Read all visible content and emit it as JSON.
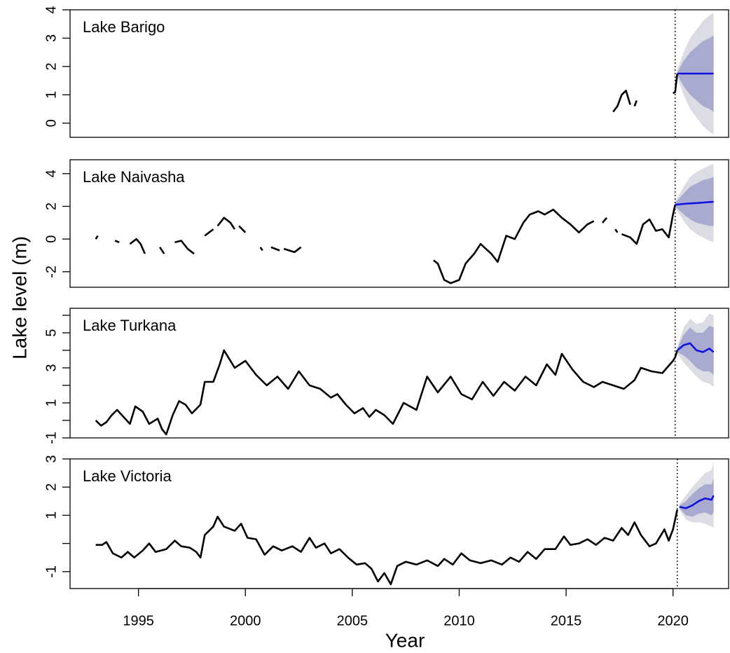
{
  "ylabel": "Lake level (m)",
  "chart_data": [
    {
      "type": "line",
      "title": "Lake Barigo",
      "color": "#000000",
      "xlim": [
        1991.8,
        2022.6
      ],
      "ylim": [
        -0.5,
        4
      ],
      "yticks": [
        0,
        1,
        2,
        3,
        4
      ],
      "vline": 2020.1,
      "x": [
        2017.2,
        2017.4,
        2017.6,
        2017.8,
        2017.9,
        2018.0,
        2018.1,
        2018.2,
        2018.3,
        2019.9,
        2020.0,
        2020.1,
        2020.2
      ],
      "values": [
        0.4,
        0.6,
        1.0,
        1.15,
        0.9,
        0.65,
        null,
        0.6,
        0.8,
        null,
        1.05,
        1.1,
        1.75
      ],
      "forecast": {
        "color": "#1010e0",
        "band80_color": "#a8abcf",
        "band95_color": "#dcdce4",
        "x": [
          2020.2,
          2020.5,
          2020.8,
          2021.1,
          2021.4,
          2021.7,
          2021.9
        ],
        "mean": [
          1.75,
          1.75,
          1.75,
          1.75,
          1.75,
          1.75,
          1.75
        ],
        "lo80": [
          1.7,
          1.3,
          1.0,
          0.8,
          0.6,
          0.5,
          0.4
        ],
        "hi80": [
          1.8,
          2.2,
          2.5,
          2.7,
          2.9,
          3.0,
          3.1
        ],
        "lo95": [
          1.6,
          1.0,
          0.5,
          0.2,
          -0.1,
          -0.3,
          -0.4
        ],
        "hi95": [
          1.9,
          2.5,
          3.0,
          3.3,
          3.6,
          3.8,
          3.9
        ]
      }
    },
    {
      "type": "line",
      "title": "Lake Naivasha",
      "color": "#000000",
      "xlim": [
        1991.8,
        2022.6
      ],
      "ylim": [
        -2.95,
        4.85
      ],
      "yticks": [
        -2,
        0,
        2,
        4
      ],
      "vline": 2020.1,
      "x": [
        1993.0,
        1993.1,
        1993.5,
        1993.9,
        1994.1,
        1994.3,
        1994.6,
        1994.9,
        1995.1,
        1995.3,
        1995.6,
        1996.0,
        1996.2,
        1996.4,
        1996.7,
        1997.0,
        1997.3,
        1997.6,
        1997.8,
        1998.1,
        1998.3,
        1998.5,
        1998.6,
        1998.7,
        1999.0,
        1999.3,
        1999.5,
        1999.6,
        1999.7,
        2000.0,
        2000.4,
        2000.7,
        2000.8,
        2001.0,
        2001.2,
        2001.6,
        2001.7,
        2001.8,
        2002.3,
        2002.6,
        2005.0,
        2008.8,
        2009.0,
        2009.3,
        2009.6,
        2010.0,
        2010.3,
        2010.7,
        2011.0,
        2011.5,
        2011.8,
        2012.2,
        2012.6,
        2013.0,
        2013.3,
        2013.7,
        2014.0,
        2014.4,
        2014.8,
        2015.2,
        2015.6,
        2016.0,
        2016.3,
        2016.5,
        2016.7,
        2016.9,
        2017.1,
        2017.3,
        2017.4,
        2017.5,
        2017.6,
        2018.0,
        2018.3,
        2018.6,
        2018.9,
        2019.2,
        2019.5,
        2019.8,
        2020.0,
        2020.1
      ],
      "values": [
        0.0,
        0.2,
        null,
        -0.1,
        -0.2,
        null,
        -0.3,
        0.0,
        -0.3,
        -0.9,
        null,
        -0.5,
        -0.9,
        null,
        -0.2,
        -0.1,
        -0.6,
        -0.9,
        null,
        0.2,
        0.4,
        0.6,
        null,
        0.8,
        1.3,
        1.0,
        0.6,
        null,
        0.8,
        0.4,
        null,
        -0.5,
        -0.7,
        null,
        -0.5,
        -0.7,
        null,
        -0.6,
        -0.8,
        -0.5,
        null,
        -1.3,
        -1.5,
        -2.5,
        -2.7,
        -2.5,
        -1.5,
        -0.9,
        -0.3,
        -0.9,
        -1.4,
        0.2,
        0.0,
        1.0,
        1.5,
        1.7,
        1.5,
        1.8,
        1.3,
        0.9,
        0.4,
        0.9,
        1.1,
        null,
        1.0,
        1.3,
        null,
        0.6,
        0.4,
        null,
        0.3,
        0.1,
        -0.3,
        0.9,
        1.2,
        0.5,
        0.6,
        0.1,
        1.5,
        2.1
      ],
      "forecast": {
        "color": "#1010e0",
        "band80_color": "#a8abcf",
        "band95_color": "#dcdce4",
        "x": [
          2020.1,
          2020.5,
          2020.8,
          2021.1,
          2021.4,
          2021.7,
          2021.9
        ],
        "mean": [
          2.1,
          2.15,
          2.18,
          2.2,
          2.23,
          2.26,
          2.28
        ],
        "lo80": [
          2.0,
          1.5,
          1.2,
          1.0,
          0.9,
          0.8,
          0.8
        ],
        "hi80": [
          2.2,
          2.8,
          3.2,
          3.4,
          3.6,
          3.7,
          3.8
        ],
        "lo95": [
          1.9,
          1.1,
          0.6,
          0.3,
          0.1,
          -0.1,
          -0.2
        ],
        "hi95": [
          2.3,
          3.2,
          3.8,
          4.1,
          4.3,
          4.5,
          4.6
        ]
      }
    },
    {
      "type": "line",
      "title": "Lake Turkana",
      "color": "#000000",
      "xlim": [
        1991.8,
        2022.6
      ],
      "ylim": [
        -1,
        6.4
      ],
      "yticks": [
        -1,
        1,
        3,
        5
      ],
      "yminor": [
        0,
        2,
        4,
        6
      ],
      "vline": 2020.1,
      "x": [
        1993.0,
        1993.25,
        1993.5,
        1993.75,
        1994.0,
        1994.3,
        1994.6,
        1994.85,
        1995.2,
        1995.5,
        1995.9,
        1996.1,
        1996.3,
        1996.6,
        1996.9,
        1997.2,
        1997.5,
        1997.9,
        1998.1,
        1998.5,
        1998.8,
        1999.0,
        1999.5,
        2000.0,
        2000.5,
        2001.0,
        2001.5,
        2002.0,
        2002.5,
        2003.0,
        2003.5,
        2004.0,
        2004.3,
        2004.7,
        2005.1,
        2005.5,
        2005.8,
        2006.1,
        2006.5,
        2006.9,
        2007.4,
        2008.0,
        2008.5,
        2009.0,
        2009.6,
        2010.1,
        2010.6,
        2011.1,
        2011.6,
        2012.1,
        2012.6,
        2013.1,
        2013.6,
        2014.1,
        2014.5,
        2014.8,
        2015.3,
        2015.8,
        2016.3,
        2016.7,
        2017.2,
        2017.7,
        2018.2,
        2018.5,
        2019.0,
        2019.5,
        2020.0,
        2020.1,
        2020.2
      ],
      "values": [
        0.0,
        -0.3,
        -0.1,
        0.3,
        0.6,
        0.2,
        -0.2,
        0.8,
        0.5,
        -0.2,
        0.1,
        -0.5,
        -0.8,
        0.3,
        1.1,
        0.9,
        0.4,
        0.9,
        2.2,
        2.2,
        3.2,
        4.0,
        3.0,
        3.4,
        2.6,
        2.0,
        2.5,
        1.8,
        2.8,
        2.0,
        1.8,
        1.3,
        1.5,
        0.9,
        0.4,
        0.7,
        0.2,
        0.6,
        0.3,
        -0.2,
        1.0,
        0.6,
        2.5,
        1.6,
        2.5,
        1.5,
        1.2,
        2.2,
        1.4,
        2.2,
        1.7,
        2.5,
        2.0,
        3.2,
        2.6,
        3.8,
        2.9,
        2.2,
        1.9,
        2.2,
        2.0,
        1.8,
        2.3,
        3.0,
        2.8,
        2.7,
        3.4,
        3.6,
        4.0
      ],
      "forecast": {
        "color": "#1010e0",
        "band80_color": "#a8abcf",
        "band95_color": "#dcdce4",
        "x": [
          2020.2,
          2020.5,
          2020.8,
          2021.1,
          2021.4,
          2021.7,
          2021.9
        ],
        "mean": [
          4.0,
          4.3,
          4.4,
          4.0,
          3.9,
          4.1,
          3.9
        ],
        "lo80": [
          3.9,
          3.7,
          3.4,
          3.0,
          2.8,
          2.8,
          2.6
        ],
        "hi80": [
          4.1,
          4.9,
          5.3,
          5.0,
          5.0,
          5.4,
          5.3
        ],
        "lo95": [
          3.8,
          3.3,
          2.9,
          2.5,
          2.2,
          2.1,
          1.9
        ],
        "hi95": [
          4.2,
          5.3,
          5.8,
          5.5,
          5.6,
          6.1,
          6.0
        ]
      }
    },
    {
      "type": "line",
      "title": "Lake Victoria",
      "color": "#000000",
      "xlabel": "Year",
      "xlim": [
        1991.8,
        2022.6
      ],
      "ylim": [
        -1.6,
        3.0
      ],
      "yticks": [
        -1,
        1,
        2,
        3
      ],
      "yminor": [
        0
      ],
      "vline": 2020.2,
      "xticks": [
        1995,
        2000,
        2005,
        2010,
        2015,
        2020
      ],
      "x": [
        1993.0,
        1993.3,
        1993.5,
        1993.8,
        1994.2,
        1994.5,
        1994.8,
        1995.2,
        1995.5,
        1995.8,
        1996.3,
        1996.7,
        1997.0,
        1997.4,
        1997.7,
        1997.9,
        1998.1,
        1998.5,
        1998.7,
        1999.0,
        1999.5,
        1999.8,
        2000.1,
        2000.5,
        2000.9,
        2001.3,
        2001.7,
        2002.2,
        2002.6,
        2003.0,
        2003.3,
        2003.7,
        2004.0,
        2004.4,
        2004.8,
        2005.2,
        2005.6,
        2005.9,
        2006.2,
        2006.5,
        2006.8,
        2007.1,
        2007.5,
        2008.0,
        2008.5,
        2009.0,
        2009.3,
        2009.7,
        2010.1,
        2010.5,
        2011.0,
        2011.5,
        2012.0,
        2012.4,
        2012.8,
        2013.2,
        2013.6,
        2014.0,
        2014.5,
        2014.9,
        2015.2,
        2015.6,
        2016.0,
        2016.4,
        2016.8,
        2017.2,
        2017.6,
        2017.9,
        2018.2,
        2018.5,
        2018.9,
        2019.2,
        2019.6,
        2019.8,
        2020.0,
        2020.2
      ],
      "values": [
        -0.05,
        -0.05,
        0.05,
        -0.35,
        -0.5,
        -0.3,
        -0.5,
        -0.25,
        0.0,
        -0.3,
        -0.2,
        0.1,
        -0.1,
        -0.15,
        -0.3,
        -0.5,
        0.3,
        0.6,
        0.95,
        0.6,
        0.45,
        0.7,
        0.2,
        0.15,
        -0.4,
        -0.1,
        -0.25,
        -0.1,
        -0.3,
        0.2,
        -0.15,
        0.0,
        -0.35,
        -0.2,
        -0.5,
        -0.75,
        -0.7,
        -0.9,
        -1.35,
        -1.05,
        -1.45,
        -0.8,
        -0.65,
        -0.75,
        -0.6,
        -0.8,
        -0.55,
        -0.75,
        -0.35,
        -0.6,
        -0.7,
        -0.6,
        -0.75,
        -0.5,
        -0.65,
        -0.3,
        -0.55,
        -0.2,
        -0.2,
        0.25,
        -0.05,
        0.0,
        0.15,
        -0.05,
        0.2,
        0.1,
        0.55,
        0.3,
        0.75,
        0.3,
        -0.1,
        0.0,
        0.5,
        0.1,
        0.5,
        1.2
      ],
      "forecast": {
        "color": "#1010e0",
        "band80_color": "#a8abcf",
        "band95_color": "#dcdce4",
        "x": [
          2020.3,
          2020.6,
          2020.9,
          2021.2,
          2021.5,
          2021.8,
          2021.9
        ],
        "mean": [
          1.3,
          1.25,
          1.35,
          1.5,
          1.6,
          1.55,
          1.7
        ],
        "lo80": [
          1.25,
          1.0,
          0.95,
          1.05,
          1.1,
          1.0,
          1.1
        ],
        "hi80": [
          1.35,
          1.5,
          1.75,
          1.95,
          2.1,
          2.1,
          2.3
        ],
        "lo95": [
          1.2,
          0.85,
          0.75,
          0.75,
          0.7,
          0.6,
          0.55
        ],
        "hi95": [
          1.4,
          1.7,
          2.0,
          2.25,
          2.5,
          2.6,
          2.9
        ]
      }
    }
  ]
}
